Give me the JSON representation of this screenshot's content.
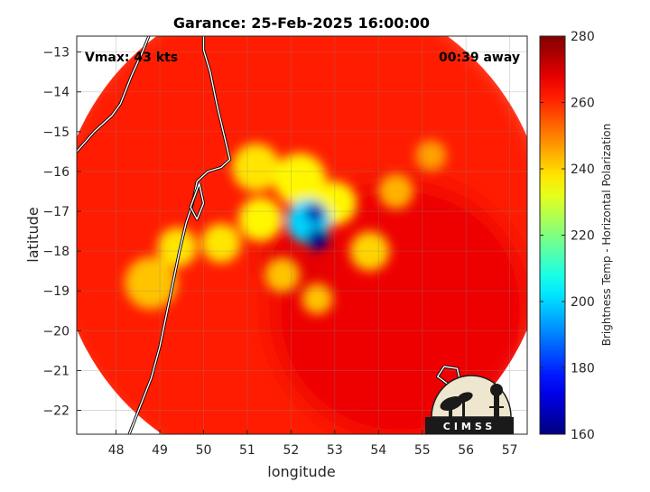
{
  "chart_data": {
    "type": "heatmap",
    "title": "Garance: 25-Feb-2025 16:00:00",
    "xlabel": "longitude",
    "ylabel": "latitude",
    "xlim": [
      47.1,
      57.4
    ],
    "ylim": [
      -22.6,
      -12.6
    ],
    "x_ticks": [
      48,
      49,
      50,
      51,
      52,
      53,
      54,
      55,
      56,
      57
    ],
    "y_ticks": [
      -13,
      -14,
      -15,
      -16,
      -17,
      -18,
      -19,
      -20,
      -21,
      -22
    ],
    "grid": true,
    "annotations": {
      "vmax": "Vmax: 43 kts",
      "time_away": "00:39 away"
    },
    "colorbar": {
      "label": "Brightness Temp - Horizontal Polarization",
      "min": 160,
      "max": 280,
      "ticks": [
        160,
        180,
        200,
        220,
        240,
        260,
        280
      ],
      "colormap": "jet"
    },
    "swath": {
      "center_lon": 52.25,
      "center_lat": -17.55,
      "radius_deg": 5.6
    },
    "features": [
      {
        "kind": "background",
        "lon": 52.2,
        "lat": -17.6,
        "radius": 6.0,
        "value": 262
      },
      {
        "kind": "cold-ocean",
        "lon": 54.5,
        "lat": -19.5,
        "radius": 3.0,
        "value": 267
      },
      {
        "kind": "eye-ring",
        "lon": 52.2,
        "lat": -18.2,
        "radius": 0.9,
        "value": 268
      },
      {
        "kind": "warm-band",
        "lon": 51.2,
        "lat": -15.9,
        "radius": 0.55,
        "value": 238
      },
      {
        "kind": "warm-band",
        "lon": 52.2,
        "lat": -16.2,
        "radius": 0.6,
        "value": 236
      },
      {
        "kind": "warm-band",
        "lon": 53.0,
        "lat": -16.8,
        "radius": 0.5,
        "value": 236
      },
      {
        "kind": "warm-band",
        "lon": 51.3,
        "lat": -17.2,
        "radius": 0.5,
        "value": 236
      },
      {
        "kind": "warm-band",
        "lon": 50.4,
        "lat": -17.8,
        "radius": 0.45,
        "value": 238
      },
      {
        "kind": "warm-band",
        "lon": 51.8,
        "lat": -18.6,
        "radius": 0.4,
        "value": 242
      },
      {
        "kind": "warm-band",
        "lon": 53.8,
        "lat": -18.0,
        "radius": 0.45,
        "value": 240
      },
      {
        "kind": "warm-band",
        "lon": 48.8,
        "lat": -18.8,
        "radius": 0.6,
        "value": 242
      },
      {
        "kind": "warm-band",
        "lon": 49.4,
        "lat": -17.9,
        "radius": 0.45,
        "value": 238
      },
      {
        "kind": "warm-band",
        "lon": 54.4,
        "lat": -16.5,
        "radius": 0.4,
        "value": 244
      },
      {
        "kind": "warm-band",
        "lon": 55.2,
        "lat": -15.6,
        "radius": 0.35,
        "value": 246
      },
      {
        "kind": "warm-band",
        "lon": 52.6,
        "lat": -19.2,
        "radius": 0.35,
        "value": 242
      },
      {
        "kind": "convection",
        "lon": 52.4,
        "lat": -17.25,
        "radius": 0.5,
        "value": 200
      },
      {
        "kind": "core",
        "lon": 52.55,
        "lat": -17.05,
        "radius": 0.22,
        "value": 165
      },
      {
        "kind": "core",
        "lon": 52.6,
        "lat": -17.7,
        "radius": 0.25,
        "value": 162
      }
    ],
    "coastline": [
      [
        [
          50.0,
          -12.55
        ],
        [
          50.0,
          -12.95
        ],
        [
          50.15,
          -13.5
        ],
        [
          50.3,
          -14.3
        ],
        [
          50.45,
          -15.0
        ],
        [
          50.6,
          -15.7
        ],
        [
          50.4,
          -15.9
        ],
        [
          50.1,
          -16.0
        ],
        [
          49.85,
          -16.25
        ],
        [
          49.75,
          -16.8
        ],
        [
          49.6,
          -17.3
        ],
        [
          49.45,
          -18.0
        ],
        [
          49.3,
          -18.8
        ],
        [
          49.15,
          -19.6
        ],
        [
          49.0,
          -20.4
        ],
        [
          48.8,
          -21.2
        ],
        [
          48.55,
          -21.9
        ],
        [
          48.3,
          -22.6
        ]
      ],
      [
        [
          49.9,
          -16.3
        ],
        [
          50.0,
          -16.8
        ],
        [
          49.85,
          -17.2
        ],
        [
          49.7,
          -16.9
        ],
        [
          49.9,
          -16.3
        ]
      ],
      [
        [
          47.1,
          -15.5
        ],
        [
          47.5,
          -15.0
        ],
        [
          47.9,
          -14.6
        ],
        [
          48.1,
          -14.3
        ],
        [
          48.35,
          -13.6
        ],
        [
          48.6,
          -13.0
        ],
        [
          48.75,
          -12.6
        ]
      ],
      [
        [
          55.5,
          -20.9
        ],
        [
          55.8,
          -20.95
        ],
        [
          55.85,
          -21.2
        ],
        [
          55.6,
          -21.35
        ],
        [
          55.35,
          -21.15
        ],
        [
          55.5,
          -20.9
        ]
      ]
    ],
    "logo": "CIMSS"
  }
}
